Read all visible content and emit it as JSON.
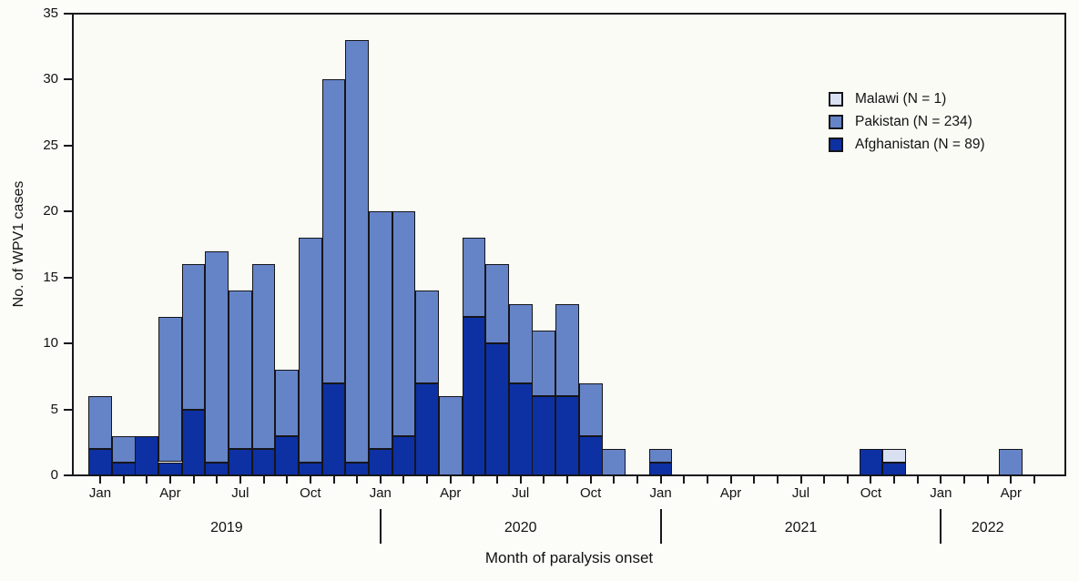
{
  "chart": {
    "ylabel": "No. of WPV1 cases",
    "xlabel": "Month of paralysis onset"
  },
  "legend": {
    "items": [
      {
        "label": "Malawi (N = 1)",
        "color": "#d9e0f2"
      },
      {
        "label": "Pakistan (N = 234)",
        "color": "#6583c7"
      },
      {
        "label": "Afghanistan (N = 89)",
        "color": "#0d30a3"
      }
    ]
  },
  "chart_data": {
    "type": "bar",
    "stacked": true,
    "title": "",
    "xlabel": "Month of paralysis onset",
    "ylabel": "No. of WPV1 cases",
    "ylim": [
      0,
      35
    ],
    "yticks": [
      0,
      5,
      10,
      15,
      20,
      25,
      30,
      35
    ],
    "grid": false,
    "legend_position": "upper right",
    "edge_color": "#15151a",
    "month_labels": [
      "Jan",
      "",
      "",
      "Apr",
      "",
      "",
      "Jul",
      "",
      "",
      "Oct",
      "",
      "",
      "Jan",
      "",
      "",
      "Apr",
      "",
      "",
      "Jul",
      "",
      "",
      "Oct",
      "",
      "",
      "Jan",
      "",
      "",
      "Apr",
      "",
      "",
      "Jul",
      "",
      "",
      "Oct",
      "",
      "",
      "Jan",
      "",
      "",
      "Apr",
      ""
    ],
    "years": [
      {
        "label": "2019",
        "startMonth": 0,
        "endMonth": 11
      },
      {
        "label": "2020",
        "startMonth": 12,
        "endMonth": 23
      },
      {
        "label": "2021",
        "startMonth": 24,
        "endMonth": 35
      },
      {
        "label": "2022",
        "startMonth": 36,
        "endMonth": 40
      }
    ],
    "year_divider_months": [
      12,
      24,
      36
    ],
    "series": [
      {
        "name": "Afghanistan",
        "legend": "Afghanistan (N = 89)",
        "color": "#0d30a3",
        "values": [
          2,
          1,
          3,
          1,
          5,
          1,
          2,
          2,
          3,
          1,
          7,
          1,
          2,
          3,
          7,
          0,
          12,
          10,
          7,
          6,
          6,
          3,
          0,
          0,
          1,
          0,
          0,
          0,
          0,
          0,
          0,
          0,
          0,
          2,
          1,
          0,
          0,
          0,
          0,
          0,
          0
        ]
      },
      {
        "name": "Pakistan",
        "legend": "Pakistan (N = 234)",
        "color": "#6583c7",
        "values": [
          4,
          2,
          0,
          11,
          11,
          16,
          12,
          14,
          5,
          17,
          23,
          32,
          18,
          17,
          7,
          6,
          6,
          6,
          6,
          5,
          7,
          4,
          2,
          0,
          1,
          0,
          0,
          0,
          0,
          0,
          0,
          0,
          0,
          0,
          0,
          0,
          0,
          0,
          0,
          2,
          0
        ]
      },
      {
        "name": "Malawi",
        "legend": "Malawi (N = 1)",
        "color": "#d9e0f2",
        "values": [
          0,
          0,
          0,
          0,
          0,
          0,
          0,
          0,
          0,
          0,
          0,
          0,
          0,
          0,
          0,
          0,
          0,
          0,
          0,
          0,
          0,
          0,
          0,
          0,
          0,
          0,
          0,
          0,
          0,
          0,
          0,
          0,
          0,
          0,
          1,
          0,
          0,
          0,
          0,
          0,
          0
        ]
      }
    ]
  }
}
